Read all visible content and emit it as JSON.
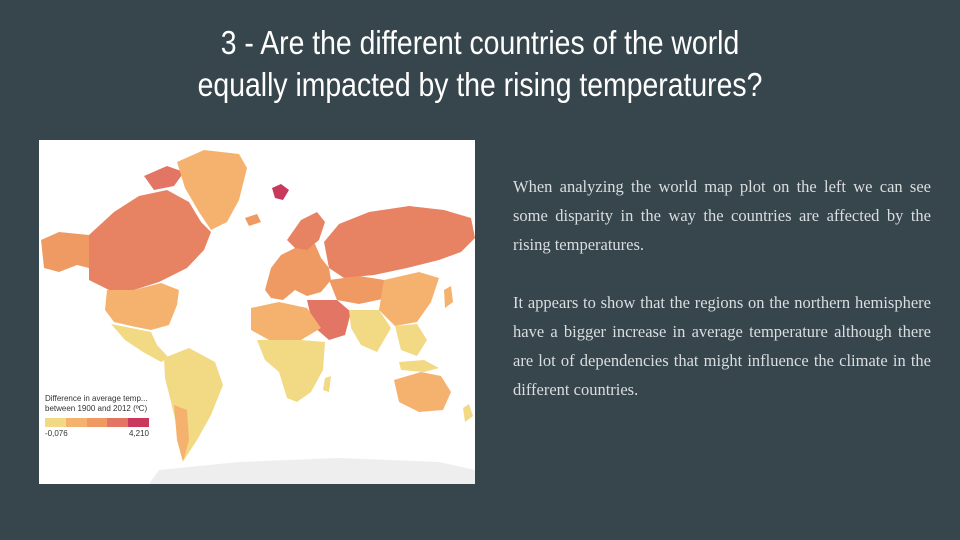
{
  "slide": {
    "title_line1": "3 - Are the different countries of the world",
    "title_line2": "equally impacted by the rising temperatures?",
    "paragraphs": [
      "When analyzing the world map plot on the left we can see some disparity in the way the countries are affected by the rising temperatures.",
      "It appears to show that the regions on the northern hemisphere have a bigger increase in average temperature although there are lot of dependencies that might influence the climate in the different countries."
    ]
  },
  "map": {
    "legend_title_line1": "Difference in average temp...",
    "legend_title_line2": "between 1900 and 2012 (ºC)",
    "legend_min": "-0,076",
    "legend_max": "4,210",
    "legend_colors": [
      "#f2d984",
      "#f5b26e",
      "#ef9a63",
      "#e27563",
      "#c9395b"
    ],
    "background_color": "#37454c"
  }
}
